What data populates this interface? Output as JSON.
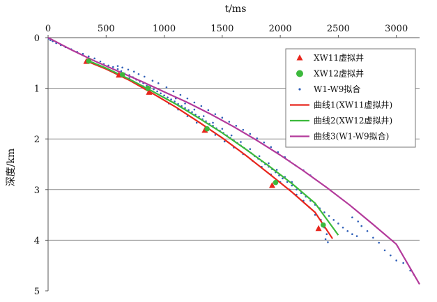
{
  "chart_data": {
    "type": "scatter",
    "title": "",
    "xlabel": "t/ms",
    "ylabel": "深度/km",
    "x_axis_position": "top",
    "y_axis_inverted": true,
    "xlim": [
      0,
      3200
    ],
    "ylim": [
      0,
      5
    ],
    "xticks": [
      0,
      500,
      1000,
      1500,
      2000,
      2500,
      3000
    ],
    "yticks": [
      0,
      1,
      2,
      3,
      4,
      5
    ],
    "grid": {
      "horizontal": true,
      "vertical": false
    },
    "legend_position": "top-right",
    "series": [
      {
        "name": "XW11虚拟井",
        "kind": "marker",
        "marker": "triangle",
        "color": "#e8261d",
        "points": [
          [
            330,
            0.47
          ],
          [
            610,
            0.74
          ],
          [
            870,
            1.08
          ],
          [
            1350,
            1.83
          ],
          [
            1930,
            2.92
          ],
          [
            2330,
            3.77
          ]
        ]
      },
      {
        "name": "XW12虚拟井",
        "kind": "marker",
        "marker": "circle",
        "color": "#3cb93c",
        "points": [
          [
            350,
            0.46
          ],
          [
            640,
            0.73
          ],
          [
            860,
            1.0
          ],
          [
            1370,
            1.8
          ],
          [
            1960,
            2.86
          ],
          [
            2370,
            3.7
          ]
        ]
      },
      {
        "name": "W1-W9拟合",
        "kind": "dots",
        "marker": "dot",
        "color": "#3060b8",
        "points": [
          [
            5,
            0.02
          ],
          [
            20,
            0.05
          ],
          [
            40,
            0.07
          ],
          [
            70,
            0.11
          ],
          [
            110,
            0.15
          ],
          [
            150,
            0.19
          ],
          [
            200,
            0.23
          ],
          [
            250,
            0.28
          ],
          [
            300,
            0.32
          ],
          [
            350,
            0.37
          ],
          [
            400,
            0.41
          ],
          [
            450,
            0.47
          ],
          [
            480,
            0.52
          ],
          [
            520,
            0.55
          ],
          [
            560,
            0.58
          ],
          [
            600,
            0.62
          ],
          [
            630,
            0.66
          ],
          [
            660,
            0.71
          ],
          [
            700,
            0.74
          ],
          [
            730,
            0.78
          ],
          [
            760,
            0.83
          ],
          [
            790,
            0.87
          ],
          [
            820,
            0.9
          ],
          [
            850,
            0.95
          ],
          [
            880,
            0.98
          ],
          [
            910,
            1.02
          ],
          [
            940,
            1.06
          ],
          [
            970,
            1.1
          ],
          [
            1000,
            1.14
          ],
          [
            1030,
            1.18
          ],
          [
            1060,
            1.22
          ],
          [
            1090,
            1.26
          ],
          [
            1120,
            1.31
          ],
          [
            1150,
            1.35
          ],
          [
            1180,
            1.39
          ],
          [
            1210,
            1.43
          ],
          [
            1240,
            1.47
          ],
          [
            1270,
            1.52
          ],
          [
            1300,
            1.56
          ],
          [
            1330,
            1.61
          ],
          [
            1360,
            1.65
          ],
          [
            1390,
            1.7
          ],
          [
            1420,
            1.74
          ],
          [
            1450,
            1.79
          ],
          [
            1480,
            1.84
          ],
          [
            1510,
            1.88
          ],
          [
            1540,
            1.93
          ],
          [
            1570,
            1.98
          ],
          [
            1600,
            2.03
          ],
          [
            1630,
            2.08
          ],
          [
            1660,
            2.13
          ],
          [
            1690,
            2.18
          ],
          [
            1720,
            2.23
          ],
          [
            1750,
            2.28
          ],
          [
            1780,
            2.34
          ],
          [
            1810,
            2.39
          ],
          [
            1840,
            2.44
          ],
          [
            1870,
            2.5
          ],
          [
            1900,
            2.55
          ],
          [
            1930,
            2.6
          ],
          [
            1960,
            2.66
          ],
          [
            1990,
            2.72
          ],
          [
            2020,
            2.78
          ],
          [
            2060,
            2.85
          ],
          [
            2100,
            2.92
          ],
          [
            2140,
            3.0
          ],
          [
            2180,
            3.07
          ],
          [
            2220,
            3.14
          ],
          [
            2260,
            3.22
          ],
          [
            2300,
            3.3
          ],
          [
            2340,
            3.37
          ],
          [
            2380,
            3.45
          ],
          [
            2420,
            3.52
          ],
          [
            2460,
            3.6
          ],
          [
            2500,
            3.67
          ],
          [
            2540,
            3.75
          ],
          [
            2580,
            3.82
          ],
          [
            2620,
            3.88
          ],
          [
            2660,
            3.92
          ],
          [
            600,
            0.56
          ],
          [
            640,
            0.59
          ],
          [
            690,
            0.63
          ],
          [
            740,
            0.67
          ],
          [
            780,
            0.72
          ],
          [
            830,
            0.77
          ],
          [
            900,
            0.85
          ],
          [
            950,
            0.9
          ],
          [
            1020,
            0.98
          ],
          [
            1080,
            1.06
          ],
          [
            1140,
            1.13
          ],
          [
            1200,
            1.2
          ],
          [
            1260,
            1.28
          ],
          [
            1320,
            1.35
          ],
          [
            1380,
            1.43
          ],
          [
            1440,
            1.51
          ],
          [
            1500,
            1.58
          ],
          [
            1560,
            1.66
          ],
          [
            1620,
            1.74
          ],
          [
            1680,
            1.82
          ],
          [
            1740,
            1.9
          ],
          [
            1800,
            1.99
          ],
          [
            1860,
            2.07
          ],
          [
            1920,
            2.16
          ],
          [
            1980,
            2.26
          ],
          [
            2040,
            2.36
          ],
          [
            2080,
            2.44
          ],
          [
            2130,
            2.52
          ],
          [
            2200,
            2.62
          ],
          [
            2260,
            2.72
          ],
          [
            700,
            0.8
          ],
          [
            760,
            0.9
          ],
          [
            820,
            0.96
          ],
          [
            880,
            1.05
          ],
          [
            960,
            1.18
          ],
          [
            1040,
            1.3
          ],
          [
            1120,
            1.42
          ],
          [
            1200,
            1.55
          ],
          [
            1280,
            1.68
          ],
          [
            1360,
            1.8
          ],
          [
            1440,
            1.92
          ],
          [
            1520,
            2.05
          ],
          [
            1600,
            2.17
          ],
          [
            1680,
            2.3
          ],
          [
            1760,
            2.43
          ],
          [
            1840,
            2.55
          ],
          [
            1920,
            2.7
          ],
          [
            2000,
            2.85
          ],
          [
            2080,
            3.0
          ],
          [
            2140,
            3.1
          ],
          [
            2200,
            3.22
          ],
          [
            2250,
            3.35
          ],
          [
            2300,
            3.5
          ],
          [
            2350,
            3.6
          ],
          [
            2380,
            3.75
          ],
          [
            2400,
            3.88
          ],
          [
            2390,
            3.98
          ],
          [
            2410,
            4.04
          ],
          [
            1100,
            1.2
          ],
          [
            1180,
            1.3
          ],
          [
            1260,
            1.42
          ],
          [
            1340,
            1.55
          ],
          [
            1420,
            1.68
          ],
          [
            1500,
            1.8
          ],
          [
            1580,
            1.93
          ],
          [
            1660,
            2.06
          ],
          [
            1740,
            2.2
          ],
          [
            1820,
            2.34
          ],
          [
            1900,
            2.48
          ],
          [
            1970,
            2.61
          ],
          [
            2040,
            2.75
          ],
          [
            2100,
            2.85
          ],
          [
            2620,
            3.55
          ],
          [
            2670,
            3.63
          ],
          [
            2700,
            3.72
          ],
          [
            2750,
            3.82
          ],
          [
            2800,
            3.95
          ],
          [
            2850,
            4.05
          ],
          [
            2900,
            4.2
          ],
          [
            2950,
            4.3
          ],
          [
            3000,
            4.4
          ],
          [
            3060,
            4.45
          ],
          [
            3120,
            4.6
          ],
          [
            3150,
            4.68
          ]
        ]
      },
      {
        "name": "曲线1(XW11虚拟井)",
        "kind": "line",
        "color": "#e8261d",
        "points": [
          [
            320,
            0.45
          ],
          [
            500,
            0.62
          ],
          [
            700,
            0.84
          ],
          [
            900,
            1.1
          ],
          [
            1100,
            1.37
          ],
          [
            1300,
            1.67
          ],
          [
            1500,
            1.98
          ],
          [
            1700,
            2.32
          ],
          [
            1900,
            2.68
          ],
          [
            2100,
            3.05
          ],
          [
            2300,
            3.45
          ],
          [
            2450,
            3.97
          ]
        ]
      },
      {
        "name": "曲线2(XW12虚拟井)",
        "kind": "line",
        "color": "#3cb93c",
        "points": [
          [
            330,
            0.44
          ],
          [
            500,
            0.6
          ],
          [
            700,
            0.82
          ],
          [
            900,
            1.06
          ],
          [
            1100,
            1.31
          ],
          [
            1300,
            1.59
          ],
          [
            1500,
            1.88
          ],
          [
            1700,
            2.2
          ],
          [
            1900,
            2.53
          ],
          [
            2100,
            2.88
          ],
          [
            2300,
            3.27
          ],
          [
            2500,
            3.9
          ]
        ]
      },
      {
        "name": "曲线3(W1-W9拟合)",
        "kind": "line",
        "color": "#b33a9b",
        "points": [
          [
            0,
            0
          ],
          [
            200,
            0.24
          ],
          [
            400,
            0.46
          ],
          [
            600,
            0.66
          ],
          [
            800,
            0.86
          ],
          [
            1000,
            1.07
          ],
          [
            1200,
            1.28
          ],
          [
            1400,
            1.51
          ],
          [
            1600,
            1.76
          ],
          [
            1800,
            2.03
          ],
          [
            2000,
            2.32
          ],
          [
            2200,
            2.63
          ],
          [
            2400,
            2.96
          ],
          [
            2600,
            3.31
          ],
          [
            2800,
            3.69
          ],
          [
            3000,
            4.08
          ],
          [
            3200,
            4.87
          ]
        ]
      }
    ]
  }
}
